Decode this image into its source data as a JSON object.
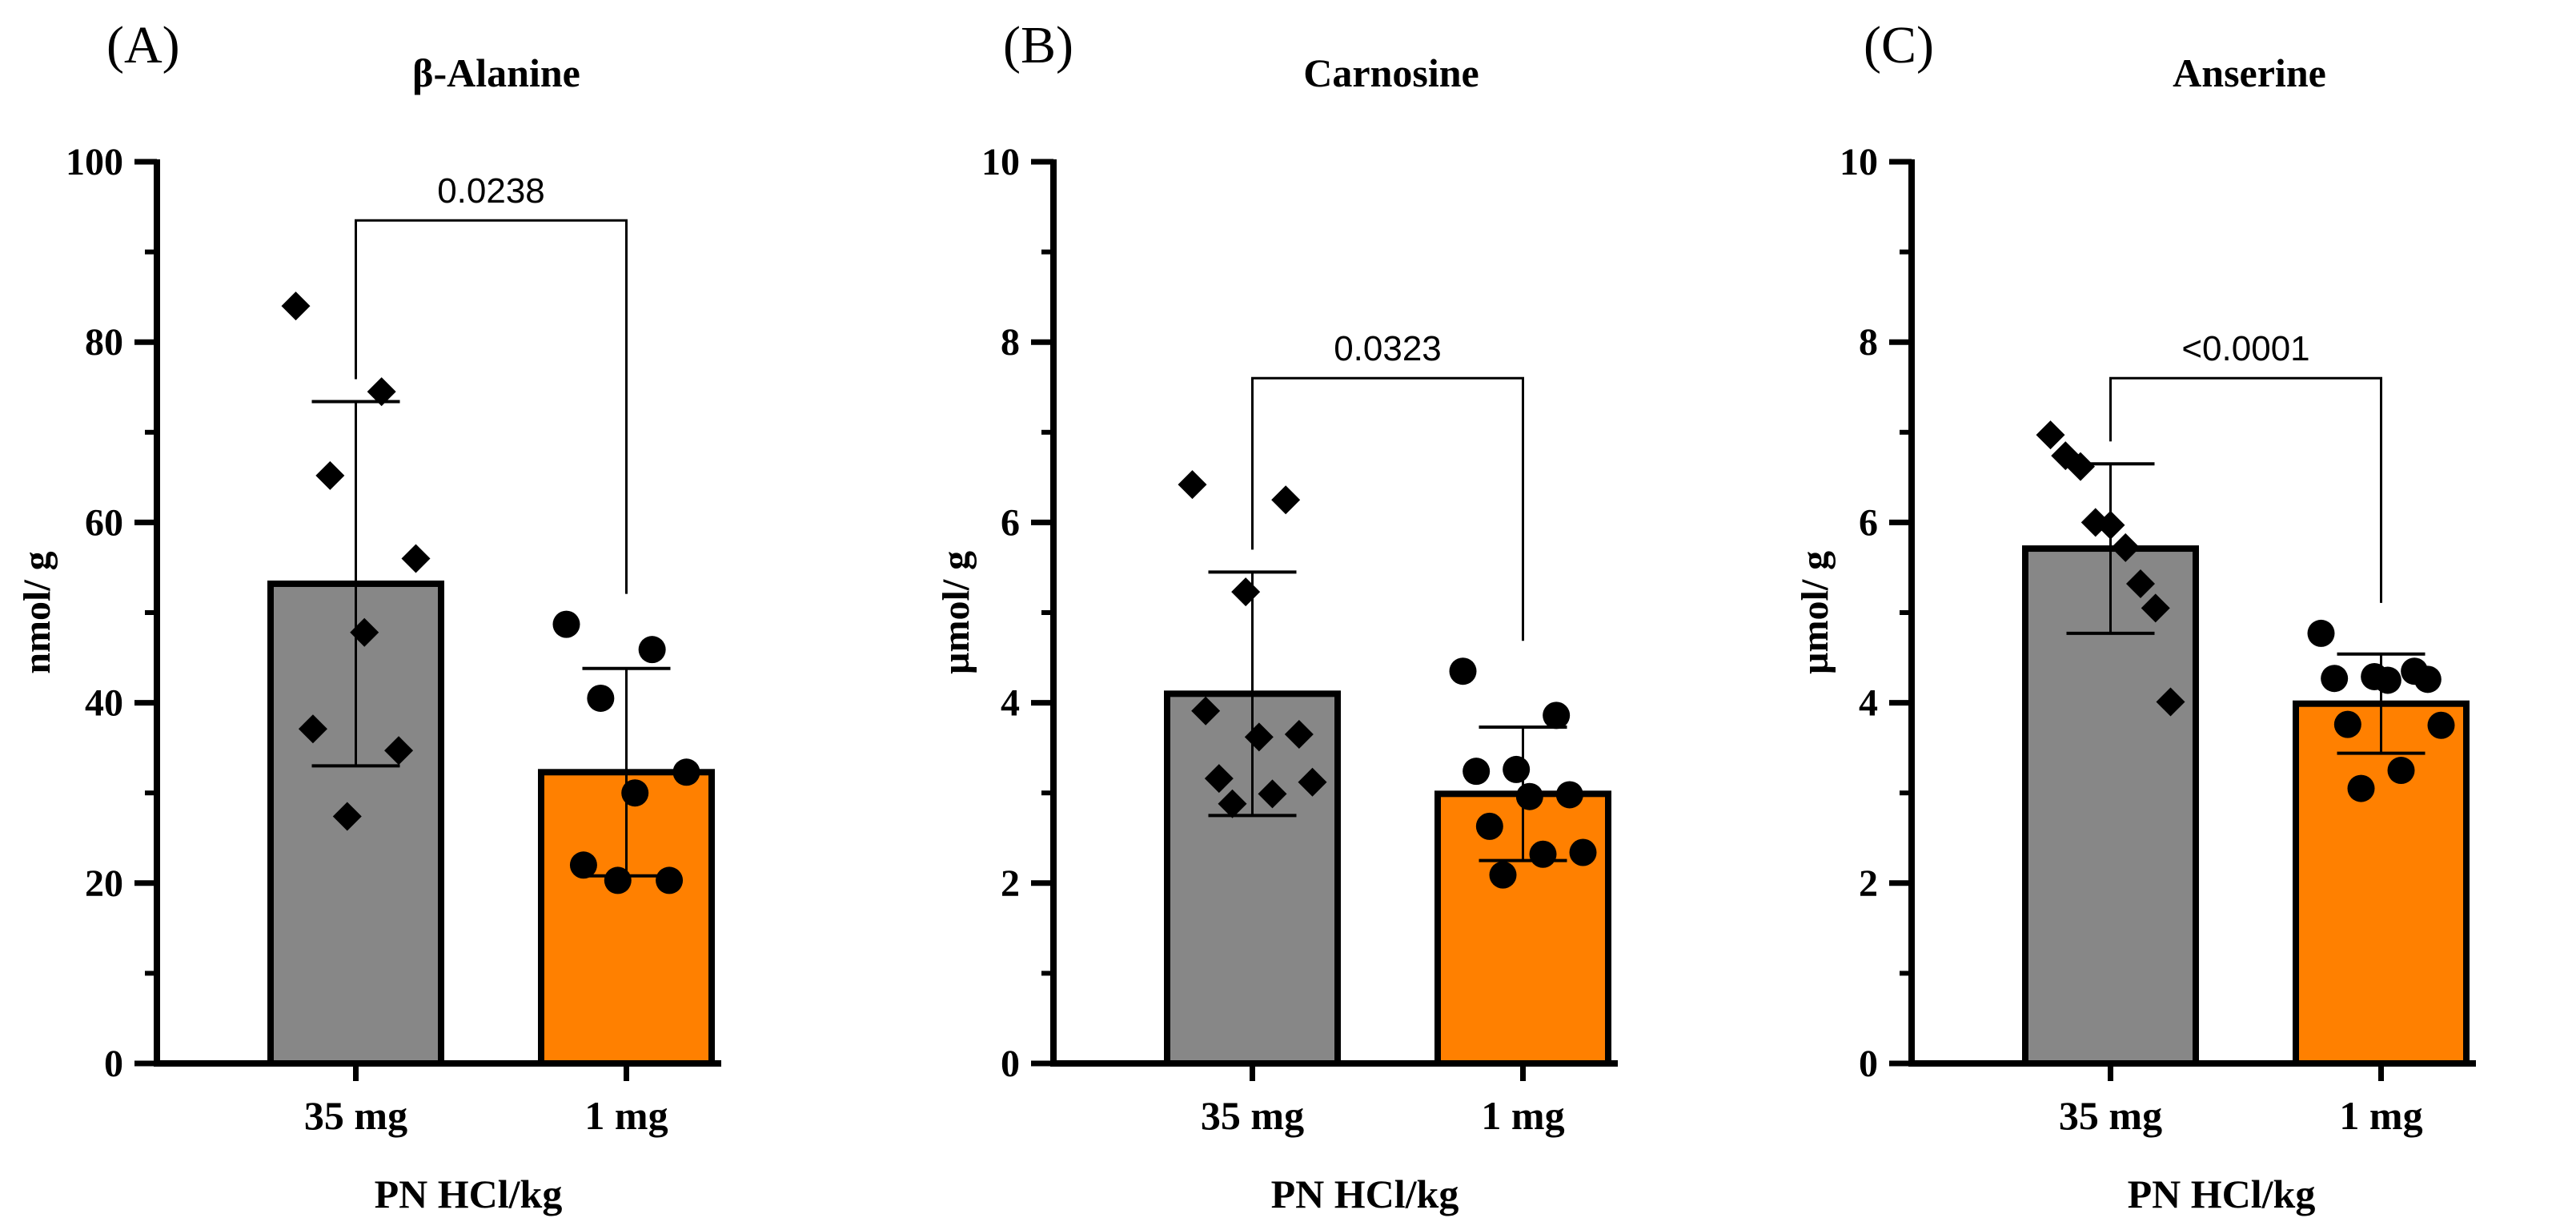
{
  "chart_data": [
    {
      "type": "bar",
      "panel": "(A)",
      "title": "β-Alanine",
      "ylabel": "nmol/ g",
      "xlabel": "PN HCl/kg",
      "ylim": [
        0,
        100
      ],
      "yticks": [
        0,
        20,
        40,
        60,
        80,
        100
      ],
      "categories": [
        "35 mg",
        "1 mg"
      ],
      "values": [
        53.2,
        32.3
      ],
      "sd": [
        20.2,
        11.5
      ],
      "colors": [
        "#878787",
        "#ff8000"
      ],
      "markers": [
        "diamond",
        "circle"
      ],
      "points": [
        [
          84.0,
          74.5,
          65.2,
          56.0,
          47.8,
          37.1,
          34.7,
          27.4
        ],
        [
          48.7,
          45.9,
          40.5,
          32.3,
          30.0,
          22.0,
          20.3,
          20.3
        ]
      ],
      "comparison": {
        "label": "0.0238",
        "y": 93.5
      }
    },
    {
      "type": "bar",
      "panel": "(B)",
      "title": "Carnosine",
      "ylabel": "µmol/ g",
      "xlabel": "PN HCl/kg",
      "ylim": [
        0,
        10
      ],
      "yticks": [
        0,
        2,
        4,
        6,
        8,
        10
      ],
      "categories": [
        "35 mg",
        "1 mg"
      ],
      "values": [
        4.1,
        2.99
      ],
      "sd": [
        1.35,
        0.74
      ],
      "colors": [
        "#878787",
        "#ff8000"
      ],
      "markers": [
        "diamond",
        "circle"
      ],
      "points": [
        [
          6.42,
          6.25,
          5.23,
          3.91,
          3.65,
          3.62,
          3.16,
          3.12,
          2.99,
          2.88
        ],
        [
          4.35,
          3.86,
          3.26,
          3.24,
          2.98,
          2.96,
          2.63,
          2.34,
          2.32,
          2.09
        ]
      ],
      "comparison": {
        "label": "0.0323",
        "y": 7.6
      }
    },
    {
      "type": "bar",
      "panel": "(C)",
      "title": "Anserine",
      "ylabel": "µmol/ g",
      "xlabel": "PN HCl/kg",
      "ylim": [
        0,
        10
      ],
      "yticks": [
        0,
        2,
        4,
        6,
        8,
        10
      ],
      "categories": [
        "35 mg",
        "1 mg"
      ],
      "values": [
        5.71,
        3.99
      ],
      "sd": [
        0.94,
        0.55
      ],
      "colors": [
        "#878787",
        "#ff8000"
      ],
      "markers": [
        "diamond",
        "circle"
      ],
      "points": [
        [
          6.97,
          6.74,
          6.62,
          6.0,
          5.97,
          5.72,
          5.32,
          5.05,
          4.01
        ],
        [
          4.77,
          4.35,
          4.29,
          4.27,
          4.26,
          4.25,
          3.76,
          3.75,
          3.25,
          3.05
        ]
      ],
      "comparison": {
        "label": "<0.0001",
        "y": 7.6
      }
    }
  ]
}
